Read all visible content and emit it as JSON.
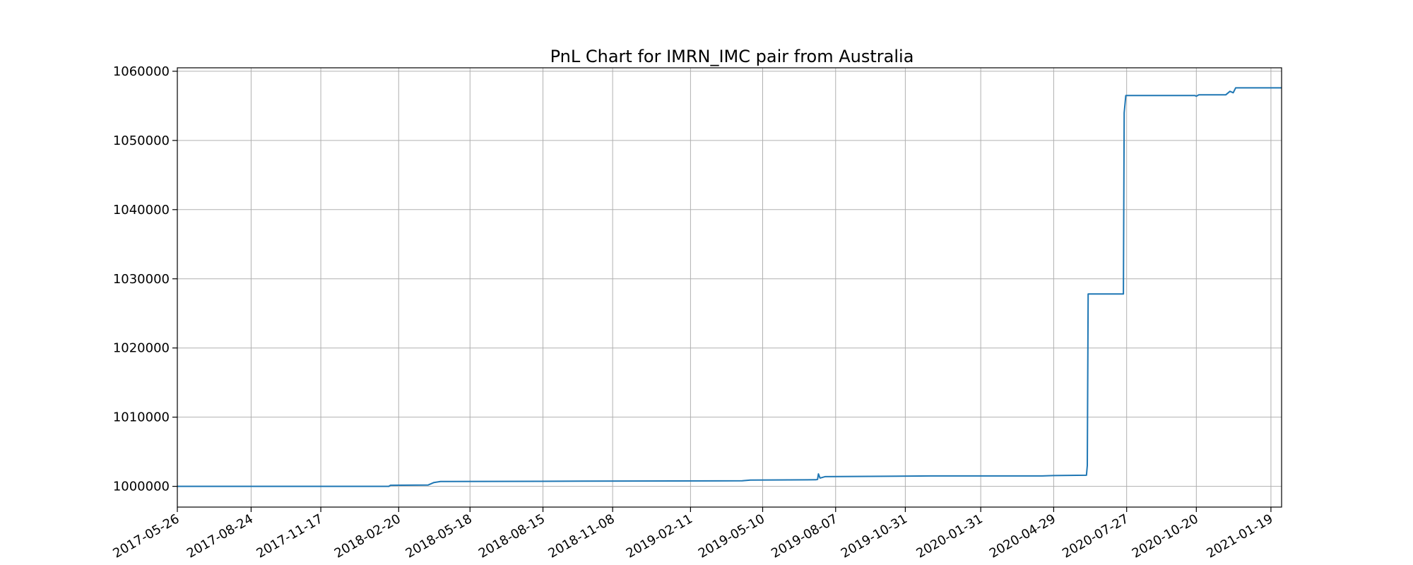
{
  "chart_data": {
    "type": "line",
    "title": "PnL Chart for IMRN_IMC pair from Australia",
    "xlabel": "",
    "ylabel": "",
    "xlim": [
      "2017-05-26",
      "2021-02-01"
    ],
    "ylim": [
      997000,
      1060500
    ],
    "grid": true,
    "x_ticks": [
      "2017-05-26",
      "2017-08-24",
      "2017-11-17",
      "2018-02-20",
      "2018-05-18",
      "2018-08-15",
      "2018-11-08",
      "2019-02-11",
      "2019-05-10",
      "2019-08-07",
      "2019-10-31",
      "2020-01-31",
      "2020-04-29",
      "2020-07-27",
      "2020-10-20",
      "2021-01-19"
    ],
    "y_ticks": [
      1000000,
      1010000,
      1020000,
      1030000,
      1040000,
      1050000,
      1060000
    ],
    "y_tick_labels": [
      "1000000",
      "1010000",
      "1020000",
      "1030000",
      "1040000",
      "1050000",
      "1060000"
    ],
    "series": [
      {
        "color": "#1f77b4",
        "points": [
          [
            "2017-05-26",
            1000000
          ],
          [
            "2018-02-08",
            1000000
          ],
          [
            "2018-02-10",
            1000150
          ],
          [
            "2018-03-28",
            1000200
          ],
          [
            "2018-04-04",
            1000550
          ],
          [
            "2018-04-12",
            1000700
          ],
          [
            "2018-10-01",
            1000750
          ],
          [
            "2019-04-15",
            1000800
          ],
          [
            "2019-04-25",
            1000900
          ],
          [
            "2019-07-14",
            1000950
          ],
          [
            "2019-07-16",
            1001000
          ],
          [
            "2019-07-17",
            1001800
          ],
          [
            "2019-07-19",
            1001200
          ],
          [
            "2019-07-25",
            1001400
          ],
          [
            "2019-12-01",
            1001500
          ],
          [
            "2020-04-15",
            1001500
          ],
          [
            "2020-04-28",
            1001550
          ],
          [
            "2020-06-08",
            1001600
          ],
          [
            "2020-06-09",
            1003000
          ],
          [
            "2020-06-10",
            1027800
          ],
          [
            "2020-07-23",
            1027800
          ],
          [
            "2020-07-24",
            1054000
          ],
          [
            "2020-07-26",
            1056500
          ],
          [
            "2020-10-18",
            1056500
          ],
          [
            "2020-10-20",
            1056400
          ],
          [
            "2020-10-23",
            1056600
          ],
          [
            "2020-11-25",
            1056600
          ],
          [
            "2020-11-30",
            1057100
          ],
          [
            "2020-12-04",
            1056900
          ],
          [
            "2020-12-07",
            1057600
          ],
          [
            "2021-02-01",
            1057600
          ]
        ]
      }
    ]
  }
}
